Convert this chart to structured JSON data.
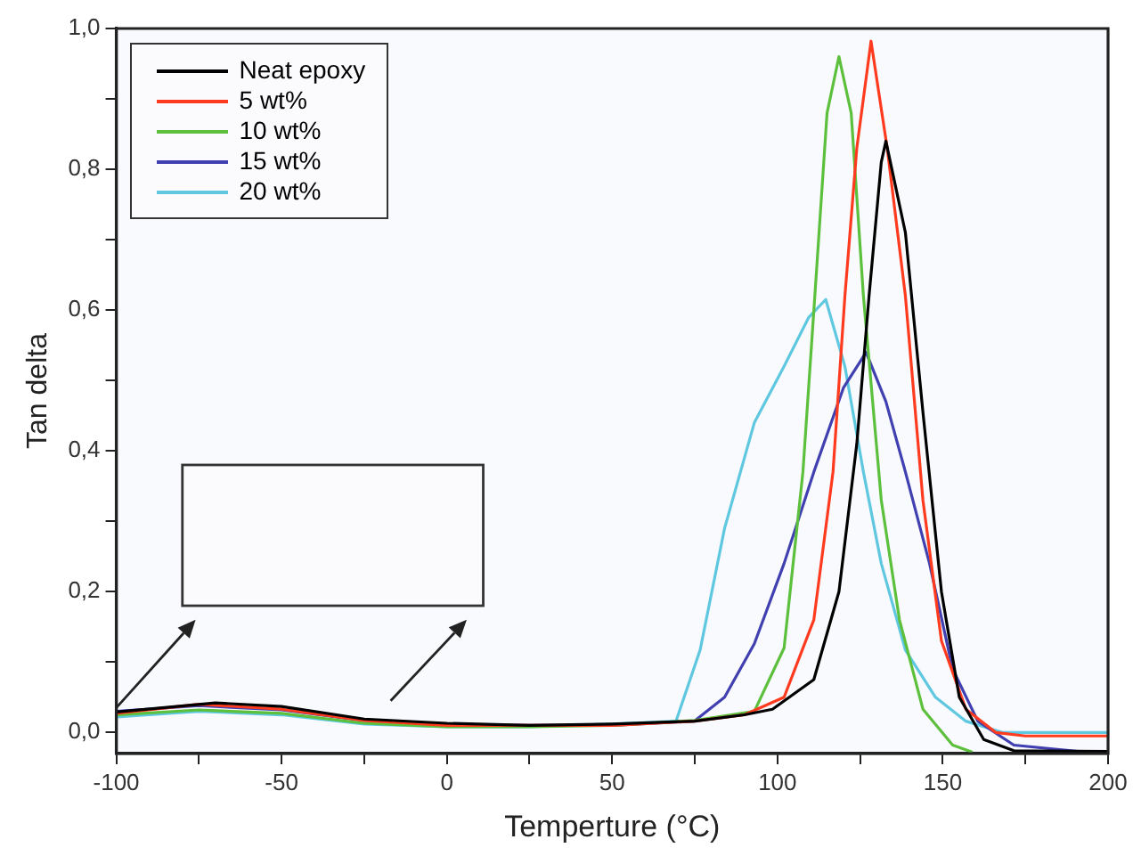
{
  "chart_data": {
    "type": "line",
    "xlabel": "Temperture (°C)",
    "ylabel": "Tan delta",
    "xlim": [
      -100,
      200
    ],
    "ylim": [
      -0.03,
      1.0
    ],
    "xticks": [
      -100,
      {
        "value": -75,
        "label": null
      },
      -50,
      {
        "value": -25,
        "label": null
      },
      0,
      {
        "value": 25,
        "label": null
      },
      50,
      {
        "value": 75,
        "label": null
      },
      100,
      {
        "value": 125,
        "label": null
      },
      150,
      {
        "value": 175,
        "label": null
      },
      200
    ],
    "yticks": [
      {
        "value": 0,
        "label": "0,0"
      },
      {
        "value": 0.1,
        "label": null
      },
      {
        "value": 0.2,
        "label": "0,2"
      },
      {
        "value": 0.3,
        "label": null
      },
      {
        "value": 0.4,
        "label": "0,4"
      },
      {
        "value": 0.5,
        "label": null
      },
      {
        "value": 0.6,
        "label": "0,6"
      },
      {
        "value": 0.7,
        "label": null
      },
      {
        "value": 0.8,
        "label": "0,8"
      },
      {
        "value": 0.9,
        "label": null
      },
      {
        "value": 1.0,
        "label": "1,0"
      }
    ],
    "grid": false,
    "legend": "top left",
    "marker": "none",
    "line_style": "solid",
    "series": [
      {
        "name": "Neat epoxy",
        "color": "#000000",
        "x": [
          -100,
          -70,
          -50,
          -25,
          0,
          25,
          50,
          75,
          90,
          98.5,
          111,
          118.6,
          124,
          127.7,
          131.4,
          132.8,
          138.7,
          144,
          149.6,
          155,
          162.4,
          171.5,
          200
        ],
        "values": [
          0.029,
          0.042,
          0.037,
          0.019,
          0.013,
          0.01,
          0.012,
          0.016,
          0.025,
          0.033,
          0.075,
          0.2,
          0.41,
          0.62,
          0.81,
          0.84,
          0.71,
          0.455,
          0.2,
          0.05,
          -0.01,
          -0.026,
          -0.027
        ]
      },
      {
        "name": "5 wt%",
        "color": "#ff3b1f",
        "x": [
          -100,
          -75,
          -50,
          -25,
          0,
          25,
          50,
          75,
          90,
          102,
          111,
          116.8,
          120.4,
          124,
          128.3,
          133.2,
          138.7,
          144,
          149.6,
          157,
          166,
          175,
          200
        ],
        "values": [
          0.027,
          0.04,
          0.033,
          0.017,
          0.01,
          0.01,
          0.01,
          0.016,
          0.025,
          0.05,
          0.16,
          0.37,
          0.62,
          0.83,
          0.982,
          0.83,
          0.62,
          0.33,
          0.13,
          0.033,
          0,
          -0.005,
          -0.005
        ]
      },
      {
        "name": "10 wt%",
        "color": "#5cc03c",
        "x": [
          -100,
          -75,
          -50,
          -25,
          0,
          25,
          50,
          75,
          93,
          102,
          107.7,
          111.3,
          115,
          116.8,
          118.6,
          122.3,
          126,
          131.4,
          136.9,
          144,
          153,
          159
        ],
        "values": [
          0.025,
          0.032,
          0.027,
          0.013,
          0.008,
          0.008,
          0.01,
          0.017,
          0.03,
          0.12,
          0.37,
          0.62,
          0.88,
          0.92,
          0.96,
          0.88,
          0.62,
          0.33,
          0.16,
          0.033,
          -0.018,
          -0.028
        ]
      },
      {
        "name": "15 wt%",
        "color": "#4040b0",
        "x": [
          -100,
          -75,
          -50,
          -25,
          0,
          25,
          50,
          74.8,
          84,
          93,
          102,
          111,
          120,
          126.8,
          132.8,
          138.7,
          146,
          153,
          160.6,
          171.5,
          193,
          200
        ],
        "values": [
          0.03,
          0.038,
          0.032,
          0.017,
          0.01,
          0.01,
          0.01,
          0.016,
          0.05,
          0.126,
          0.24,
          0.37,
          0.49,
          0.54,
          0.47,
          0.37,
          0.24,
          0.09,
          0.016,
          -0.018,
          -0.028,
          -0.028
        ]
      },
      {
        "name": "20 wt%",
        "color": "#5fc8e0",
        "x": [
          -100,
          -75,
          -50,
          -25,
          0,
          25,
          50,
          69.3,
          76.6,
          84,
          93,
          102,
          109.5,
          114.6,
          120.4,
          126,
          131.4,
          138.7,
          147.8,
          157,
          168,
          200
        ],
        "values": [
          0.022,
          0.03,
          0.025,
          0.012,
          0.008,
          0.008,
          0.012,
          0.016,
          0.117,
          0.29,
          0.44,
          0.52,
          0.59,
          0.615,
          0.52,
          0.37,
          0.24,
          0.117,
          0.05,
          0.016,
          0,
          0
        ]
      }
    ]
  }
}
